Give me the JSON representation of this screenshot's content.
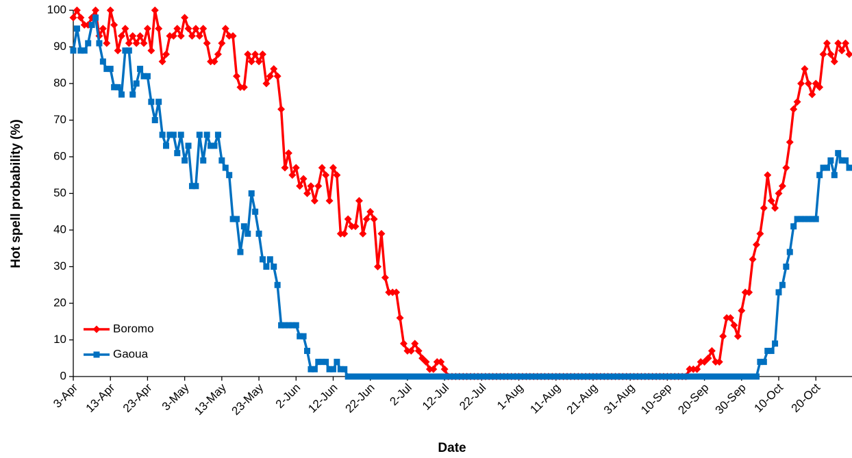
{
  "chart_data": {
    "type": "line",
    "x_label": "Date",
    "y_label": "Hot spell probability (%)",
    "categories": [
      "3-Apr",
      null,
      null,
      null,
      null,
      null,
      null,
      null,
      null,
      null,
      "13-Apr",
      null,
      null,
      null,
      null,
      null,
      null,
      null,
      null,
      null,
      "23-Apr",
      null,
      null,
      null,
      null,
      null,
      null,
      null,
      null,
      null,
      "3-May",
      null,
      null,
      null,
      null,
      null,
      null,
      null,
      null,
      null,
      "13-May",
      null,
      null,
      null,
      null,
      null,
      null,
      null,
      null,
      null,
      "23-May",
      null,
      null,
      null,
      null,
      null,
      null,
      null,
      null,
      null,
      "2-Jun",
      null,
      null,
      null,
      null,
      null,
      null,
      null,
      null,
      null,
      "12-Jun",
      null,
      null,
      null,
      null,
      null,
      null,
      null,
      null,
      null,
      "22-Jun",
      null,
      null,
      null,
      null,
      null,
      null,
      null,
      null,
      null,
      "2-Jul",
      null,
      null,
      null,
      null,
      null,
      null,
      null,
      null,
      null,
      "12-Jul",
      null,
      null,
      null,
      null,
      null,
      null,
      null,
      null,
      null,
      "22-Jul",
      null,
      null,
      null,
      null,
      null,
      null,
      null,
      null,
      null,
      "1-Aug",
      null,
      null,
      null,
      null,
      null,
      null,
      null,
      null,
      null,
      "11-Aug",
      null,
      null,
      null,
      null,
      null,
      null,
      null,
      null,
      null,
      "21-Aug",
      null,
      null,
      null,
      null,
      null,
      null,
      null,
      null,
      null,
      "31-Aug",
      null,
      null,
      null,
      null,
      null,
      null,
      null,
      null,
      null,
      "10-Sep",
      null,
      null,
      null,
      null,
      null,
      null,
      null,
      null,
      null,
      "20-Sep",
      null,
      null,
      null,
      null,
      null,
      null,
      null,
      null,
      null,
      "30-Sep",
      null,
      null,
      null,
      null,
      null,
      null,
      null,
      null,
      null,
      "10-Oct",
      null,
      null,
      null,
      null,
      null,
      null,
      null,
      null,
      null,
      "20-Oct",
      null,
      null,
      null,
      null,
      null,
      null,
      null,
      null,
      null
    ],
    "series": [
      {
        "name": "Boromo",
        "color": "#ff0000",
        "marker": "diamond",
        "values": [
          98,
          100,
          98,
          96,
          96,
          98,
          100,
          93,
          95,
          91,
          100,
          96,
          89,
          93,
          95,
          91,
          93,
          91,
          93,
          91,
          95,
          89,
          100,
          95,
          86,
          88,
          93,
          93,
          95,
          93,
          98,
          95,
          93,
          95,
          93,
          95,
          91,
          86,
          86,
          88,
          91,
          95,
          93,
          93,
          82,
          79,
          79,
          88,
          86,
          88,
          86,
          88,
          80,
          82,
          84,
          82,
          73,
          57,
          61,
          55,
          57,
          52,
          54,
          50,
          52,
          48,
          52,
          57,
          55,
          48,
          57,
          55,
          39,
          39,
          43,
          41,
          41,
          48,
          39,
          43,
          45,
          43,
          30,
          39,
          27,
          23,
          23,
          23,
          16,
          9,
          7,
          7,
          9,
          7,
          5,
          4,
          2,
          2,
          4,
          4,
          2,
          0,
          0,
          0,
          0,
          0,
          0,
          0,
          0,
          0,
          0,
          0,
          0,
          0,
          0,
          0,
          0,
          0,
          0,
          0,
          0,
          0,
          0,
          0,
          0,
          0,
          0,
          0,
          0,
          0,
          0,
          0,
          0,
          0,
          0,
          0,
          0,
          0,
          0,
          0,
          0,
          0,
          0,
          0,
          0,
          0,
          0,
          0,
          0,
          0,
          0,
          0,
          0,
          0,
          0,
          0,
          0,
          0,
          0,
          0,
          0,
          0,
          0,
          0,
          0,
          0,
          2,
          2,
          2,
          4,
          4,
          5,
          7,
          4,
          4,
          11,
          16,
          16,
          14,
          11,
          18,
          23,
          23,
          32,
          36,
          39,
          46,
          55,
          48,
          46,
          50,
          52,
          57,
          64,
          73,
          75,
          80,
          84,
          80,
          77,
          80,
          79,
          88,
          91,
          88,
          86,
          91,
          89,
          91,
          88
        ]
      },
      {
        "name": "Gaoua",
        "color": "#0070c0",
        "marker": "square",
        "values": [
          89,
          95,
          89,
          89,
          91,
          96,
          98,
          91,
          86,
          84,
          84,
          79,
          79,
          77,
          89,
          89,
          77,
          80,
          84,
          82,
          82,
          75,
          70,
          75,
          66,
          63,
          66,
          66,
          61,
          66,
          59,
          63,
          52,
          52,
          66,
          59,
          66,
          63,
          63,
          66,
          59,
          57,
          55,
          43,
          43,
          34,
          41,
          39,
          50,
          45,
          39,
          32,
          30,
          32,
          30,
          25,
          14,
          14,
          14,
          14,
          14,
          11,
          11,
          7,
          2,
          2,
          4,
          4,
          4,
          2,
          2,
          4,
          2,
          2,
          0,
          0,
          0,
          0,
          0,
          0,
          0,
          0,
          0,
          0,
          0,
          0,
          0,
          0,
          0,
          0,
          0,
          0,
          0,
          0,
          0,
          0,
          0,
          0,
          0,
          0,
          0,
          0,
          0,
          0,
          0,
          0,
          0,
          0,
          0,
          0,
          0,
          0,
          0,
          0,
          0,
          0,
          0,
          0,
          0,
          0,
          0,
          0,
          0,
          0,
          0,
          0,
          0,
          0,
          0,
          0,
          0,
          0,
          0,
          0,
          0,
          0,
          0,
          0,
          0,
          0,
          0,
          0,
          0,
          0,
          0,
          0,
          0,
          0,
          0,
          0,
          0,
          0,
          0,
          0,
          0,
          0,
          0,
          0,
          0,
          0,
          0,
          0,
          0,
          0,
          0,
          0,
          0,
          0,
          0,
          0,
          0,
          0,
          0,
          0,
          0,
          0,
          0,
          0,
          0,
          0,
          0,
          0,
          0,
          0,
          0,
          4,
          4,
          7,
          7,
          9,
          23,
          25,
          30,
          34,
          41,
          43,
          43,
          43,
          43,
          43,
          43,
          55,
          57,
          57,
          59,
          55,
          61,
          59,
          59,
          57
        ]
      }
    ],
    "ylim": [
      0,
      100
    ],
    "yticks": [
      0,
      10,
      20,
      30,
      40,
      50,
      60,
      70,
      80,
      90,
      100
    ],
    "grid": false,
    "legend": "lower left"
  }
}
